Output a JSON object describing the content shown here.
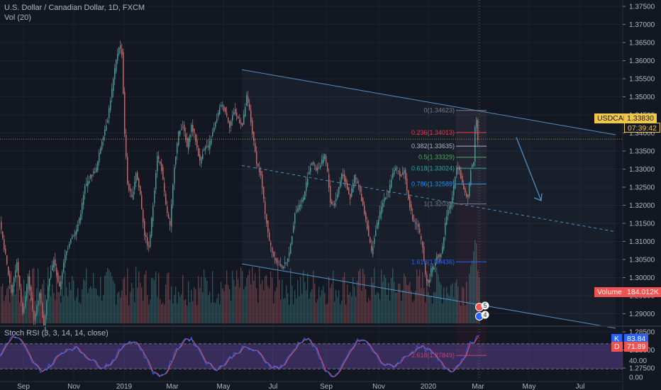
{
  "header": {
    "symbol_title": "U.S. Dollar / Canadian Dollar, 1D, FXCM",
    "volume_label": "Vol (20)"
  },
  "price_axis": {
    "labels": [
      "1.37500",
      "1.37000",
      "1.36500",
      "1.36000",
      "1.35500",
      "1.35000",
      "1.34500",
      "1.34000",
      "1.33500",
      "1.33000",
      "1.32500",
      "1.32000",
      "1.31500",
      "1.31000",
      "1.30500",
      "1.30000",
      "1.29500",
      "1.29000",
      "1.28500",
      "1.28000",
      "1.27500"
    ]
  },
  "time_axis": {
    "labels": [
      "Sep",
      "Nov",
      "2019",
      "Mar",
      "May",
      "Jul",
      "Sep",
      "Nov",
      "2020",
      "Mar",
      "May",
      "Jul"
    ]
  },
  "symbol_badge": {
    "symbol": "USDCAD",
    "price": "1.33830",
    "countdown": "07:39:42",
    "color": "#f0c74d"
  },
  "volume_badge": {
    "label": "Volume",
    "value": "184.012K",
    "color": "#ef5350"
  },
  "fibonacci": {
    "levels": [
      {
        "text": "0(1.34623)",
        "color": "#787b86"
      },
      {
        "text": "0.236(1.34013)",
        "color": "#f23645"
      },
      {
        "text": "0.382(1.33635)",
        "color": "#b2b5be"
      },
      {
        "text": "0.5(1.33329)",
        "color": "#4caf50"
      },
      {
        "text": "0.618(1.33024)",
        "color": "#26a69a"
      },
      {
        "text": "0.786(1.32589)",
        "color": "#2196f3"
      },
      {
        "text": "1(1.32036)",
        "color": "#787b86"
      },
      {
        "text": "1.618(1.30436)",
        "color": "#2962ff"
      },
      {
        "text": "2.618(1.27849)",
        "color": "#f23645"
      }
    ]
  },
  "event_markers": [
    "5",
    "4"
  ],
  "stoch": {
    "title": "Stoch RSI (3, 3, 14, 14, close)",
    "axis_labels": [
      "80.00",
      "40.00",
      "0.00"
    ],
    "k_label": "K",
    "k_value": "83.84",
    "k_color": "#2962ff",
    "d_label": "D",
    "d_value": "71.89",
    "d_color": "#ef5350",
    "band_color": "#7e57c2"
  },
  "colors": {
    "up": "#26a69a",
    "down": "#ef5350",
    "channel": "#4a90c8",
    "background": "#131722"
  },
  "chart_data": {
    "type": "candlestick",
    "title": "U.S. Dollar / Canadian Dollar, 1D, FXCM",
    "y_axis": {
      "range": [
        1.273,
        1.378
      ],
      "ticks_step": 0.005
    },
    "x_axis": {
      "ticks": [
        "Sep",
        "Nov",
        "2019",
        "Mar",
        "May",
        "Jul",
        "Sep",
        "Nov",
        "2020",
        "Mar",
        "May",
        "Jul"
      ]
    },
    "last_price": 1.3383,
    "price_path": [
      [
        0,
        1.315
      ],
      [
        8,
        1.306
      ],
      [
        16,
        1.296
      ],
      [
        24,
        1.304
      ],
      [
        32,
        1.29
      ],
      [
        40,
        1.3
      ],
      [
        48,
        1.288
      ],
      [
        56,
        1.296
      ],
      [
        62,
        1.286
      ],
      [
        68,
        1.298
      ],
      [
        76,
        1.305
      ],
      [
        84,
        1.297
      ],
      [
        92,
        1.306
      ],
      [
        100,
        1.311
      ],
      [
        108,
        1.313
      ],
      [
        114,
        1.318
      ],
      [
        120,
        1.325
      ],
      [
        128,
        1.328
      ],
      [
        136,
        1.33
      ],
      [
        144,
        1.338
      ],
      [
        152,
        1.344
      ],
      [
        158,
        1.352
      ],
      [
        164,
        1.36
      ],
      [
        168,
        1.364
      ],
      [
        172,
        1.362
      ],
      [
        176,
        1.34
      ],
      [
        180,
        1.326
      ],
      [
        186,
        1.322
      ],
      [
        192,
        1.329
      ],
      [
        198,
        1.323
      ],
      [
        204,
        1.312
      ],
      [
        210,
        1.308
      ],
      [
        216,
        1.32
      ],
      [
        222,
        1.334
      ],
      [
        228,
        1.33
      ],
      [
        234,
        1.32
      ],
      [
        240,
        1.314
      ],
      [
        246,
        1.331
      ],
      [
        252,
        1.34
      ],
      [
        258,
        1.342
      ],
      [
        264,
        1.336
      ],
      [
        270,
        1.342
      ],
      [
        276,
        1.338
      ],
      [
        282,
        1.332
      ],
      [
        288,
        1.336
      ],
      [
        294,
        1.336
      ],
      [
        300,
        1.34
      ],
      [
        306,
        1.344
      ],
      [
        312,
        1.348
      ],
      [
        318,
        1.346
      ],
      [
        324,
        1.342
      ],
      [
        330,
        1.346
      ],
      [
        336,
        1.344
      ],
      [
        342,
        1.342
      ],
      [
        348,
        1.35
      ],
      [
        352,
        1.346
      ],
      [
        356,
        1.34
      ],
      [
        362,
        1.332
      ],
      [
        368,
        1.328
      ],
      [
        374,
        1.318
      ],
      [
        380,
        1.31
      ],
      [
        386,
        1.306
      ],
      [
        392,
        1.304
      ],
      [
        398,
        1.303
      ],
      [
        404,
        1.304
      ],
      [
        410,
        1.309
      ],
      [
        416,
        1.318
      ],
      [
        422,
        1.32
      ],
      [
        428,
        1.322
      ],
      [
        434,
        1.328
      ],
      [
        440,
        1.332
      ],
      [
        446,
        1.33
      ],
      [
        452,
        1.331
      ],
      [
        458,
        1.334
      ],
      [
        462,
        1.329
      ],
      [
        466,
        1.321
      ],
      [
        470,
        1.32
      ],
      [
        476,
        1.323
      ],
      [
        482,
        1.329
      ],
      [
        488,
        1.326
      ],
      [
        494,
        1.322
      ],
      [
        500,
        1.328
      ],
      [
        506,
        1.325
      ],
      [
        512,
        1.32
      ],
      [
        518,
        1.314
      ],
      [
        524,
        1.307
      ],
      [
        530,
        1.313
      ],
      [
        536,
        1.318
      ],
      [
        542,
        1.322
      ],
      [
        548,
        1.324
      ],
      [
        554,
        1.329
      ],
      [
        560,
        1.33
      ],
      [
        566,
        1.328
      ],
      [
        570,
        1.33
      ],
      [
        574,
        1.324
      ],
      [
        578,
        1.32
      ],
      [
        582,
        1.316
      ],
      [
        586,
        1.315
      ],
      [
        590,
        1.314
      ],
      [
        596,
        1.308
      ],
      [
        600,
        1.301
      ],
      [
        604,
        1.298
      ],
      [
        608,
        1.302
      ],
      [
        612,
        1.303
      ],
      [
        616,
        1.306
      ],
      [
        620,
        1.306
      ],
      [
        624,
        1.308
      ],
      [
        628,
        1.315
      ],
      [
        632,
        1.319
      ],
      [
        636,
        1.32
      ],
      [
        640,
        1.325
      ],
      [
        644,
        1.331
      ],
      [
        648,
        1.33
      ],
      [
        652,
        1.326
      ],
      [
        656,
        1.323
      ],
      [
        660,
        1.322
      ],
      [
        664,
        1.33
      ],
      [
        668,
        1.332
      ],
      [
        670,
        1.342
      ],
      [
        672,
        1.344
      ],
      [
        674,
        1.3383
      ]
    ],
    "channel": {
      "upper": [
        [
          341,
          1.3575
        ],
        [
          868,
          1.3395
        ]
      ],
      "lower": [
        [
          341,
          1.3038
        ],
        [
          868,
          1.286
        ]
      ],
      "mid_dashed": [
        [
          341,
          1.331
        ],
        [
          868,
          1.3127
        ]
      ]
    },
    "forecast_arrow": [
      [
        728,
        1.3388
      ],
      [
        763,
        1.3213
      ]
    ]
  }
}
